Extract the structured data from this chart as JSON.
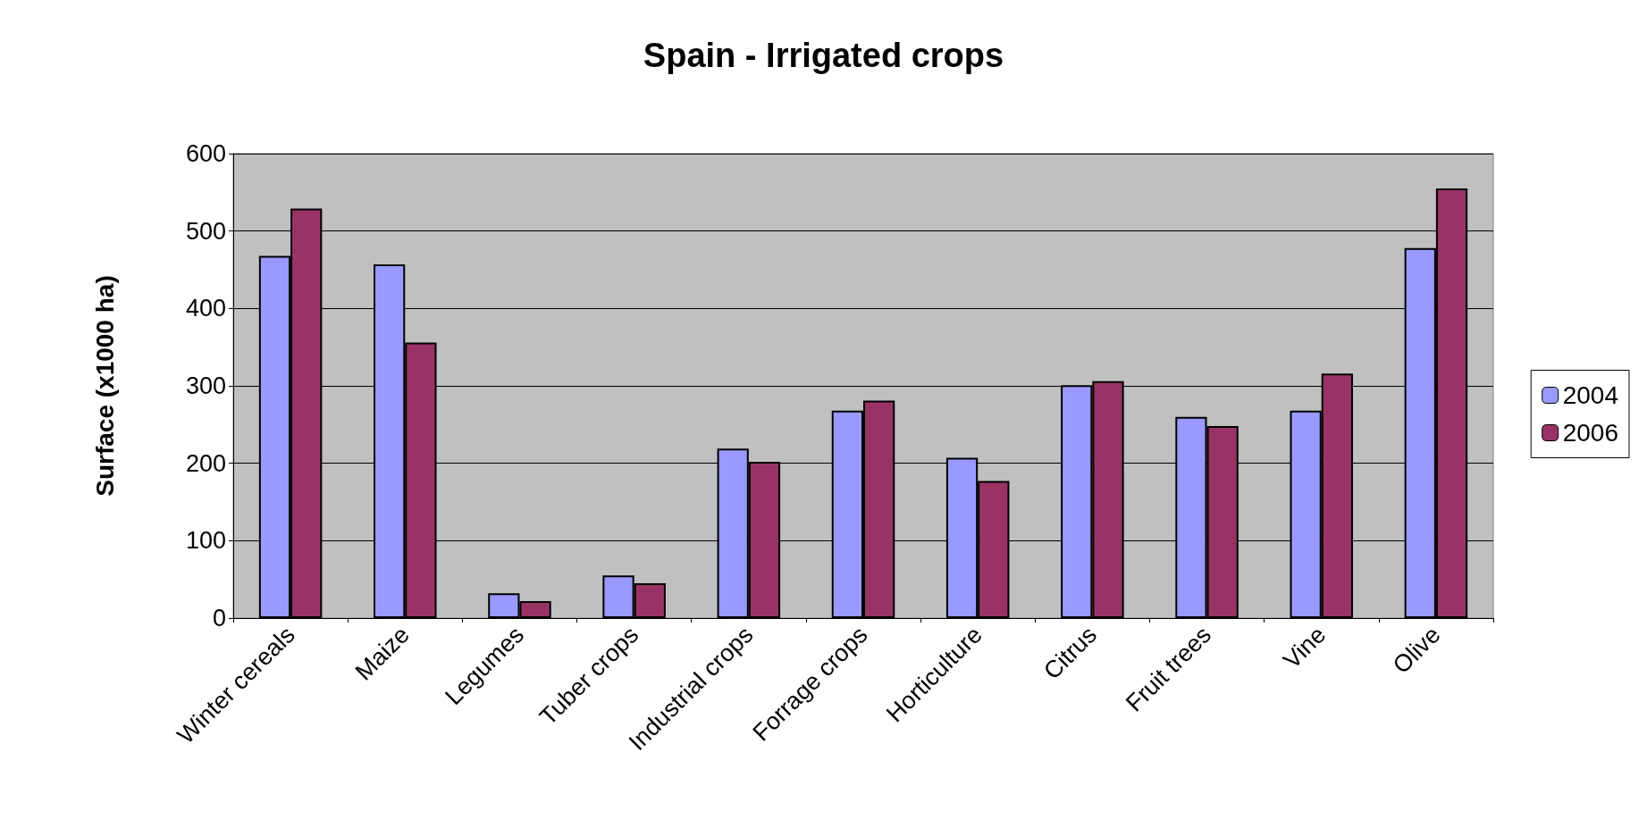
{
  "chart_data": {
    "type": "bar",
    "title": "Spain - Irrigated crops",
    "ylabel": "Surface (x1000 ha)",
    "categories": [
      "Winter cereals",
      "Maize",
      "Legumes",
      "Tuber crops",
      "Industrial crops",
      "Forrage crops",
      "Horticulture",
      "Citrus",
      "Fruit trees",
      "Vine",
      "Olive"
    ],
    "series": [
      {
        "name": "2004",
        "color": "#9999ff",
        "values": [
          468,
          457,
          32,
          55,
          219,
          268,
          207,
          301,
          260,
          268,
          478
        ]
      },
      {
        "name": "2006",
        "color": "#993366",
        "values": [
          529,
          356,
          22,
          45,
          202,
          281,
          177,
          306,
          248,
          316,
          555
        ]
      }
    ],
    "ylim": [
      0,
      600
    ],
    "yticks": [
      0,
      100,
      200,
      300,
      400,
      500,
      600
    ],
    "grid": "y",
    "legend": "right"
  }
}
